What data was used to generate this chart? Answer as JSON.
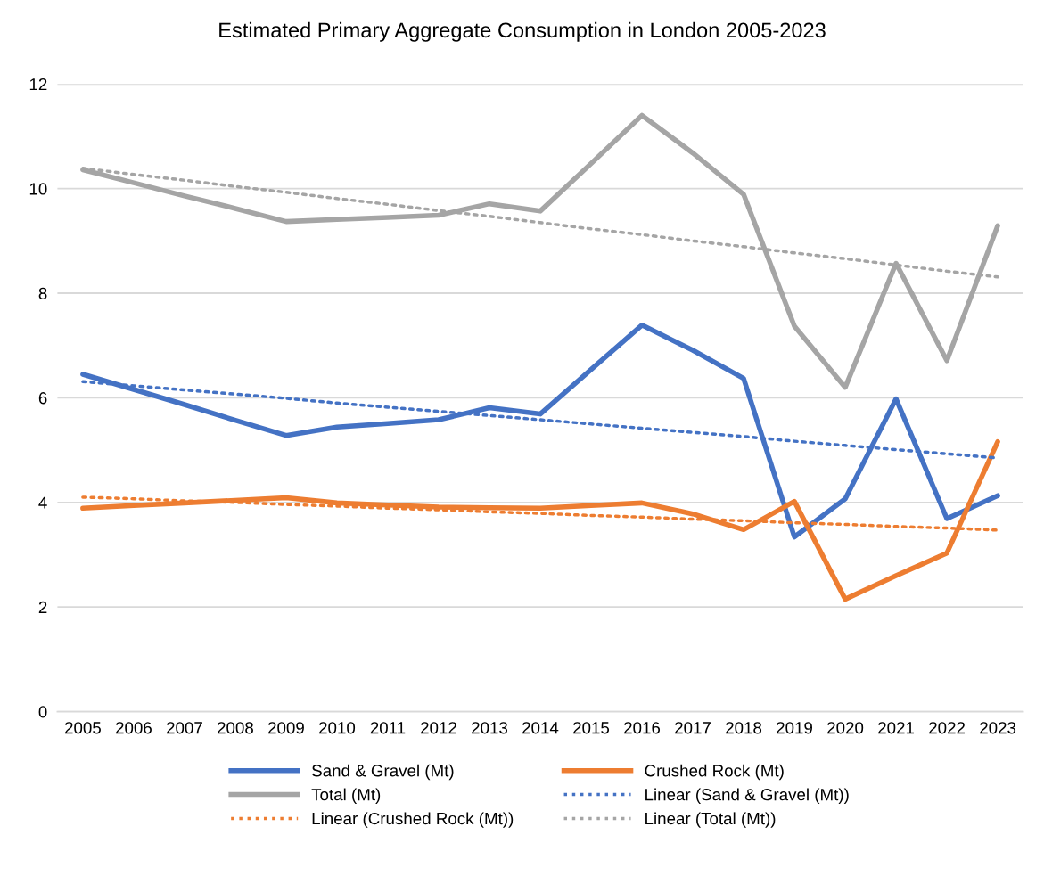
{
  "chart_data": {
    "type": "line",
    "title": "Estimated Primary Aggregate Consumption in London 2005-2023",
    "categories": [
      "2005",
      "2006",
      "2007",
      "2008",
      "2009",
      "2010",
      "2011",
      "2012",
      "2013",
      "2014",
      "2015",
      "2016",
      "2017",
      "2018",
      "2019",
      "2020",
      "2021",
      "2022",
      "2023"
    ],
    "series": [
      {
        "name": "Sand & Gravel (Mt)",
        "color": "#4472c4",
        "values": [
          6.45,
          6.16,
          5.87,
          5.57,
          5.28,
          5.44,
          5.51,
          5.58,
          5.81,
          5.69,
          6.54,
          7.39,
          6.91,
          6.37,
          3.34,
          4.07,
          5.98,
          3.69,
          4.13
        ]
      },
      {
        "name": "Crushed Rock (Mt)",
        "color": "#ed7d31",
        "values": [
          3.89,
          3.94,
          3.99,
          4.04,
          4.09,
          3.99,
          3.95,
          3.91,
          3.9,
          3.89,
          3.94,
          3.99,
          3.78,
          3.48,
          4.02,
          2.15,
          2.6,
          3.03,
          5.16
        ]
      },
      {
        "name": "Total (Mt)",
        "color": "#a5a5a5",
        "values": [
          10.36,
          10.11,
          9.86,
          9.62,
          9.37,
          9.41,
          9.45,
          9.49,
          9.71,
          9.57,
          10.48,
          11.4,
          10.68,
          9.89,
          7.37,
          6.2,
          8.57,
          6.71,
          9.29
        ]
      },
      {
        "name": "Linear (Sand & Gravel (Mt))",
        "color": "#4472c4",
        "line_style": "dotted",
        "values": [
          6.31,
          6.23,
          6.15,
          6.07,
          5.99,
          5.9,
          5.82,
          5.74,
          5.66,
          5.58,
          5.5,
          5.42,
          5.34,
          5.26,
          5.17,
          5.09,
          5.01,
          4.93,
          4.85
        ]
      },
      {
        "name": "Linear (Crushed Rock (Mt))",
        "color": "#ed7d31",
        "line_style": "dotted",
        "values": [
          4.1,
          4.07,
          4.03,
          4.0,
          3.96,
          3.93,
          3.89,
          3.86,
          3.82,
          3.79,
          3.75,
          3.72,
          3.68,
          3.65,
          3.61,
          3.58,
          3.54,
          3.51,
          3.47
        ]
      },
      {
        "name": "Linear (Total (Mt))",
        "color": "#a5a5a5",
        "line_style": "dotted",
        "values": [
          10.39,
          10.27,
          10.16,
          10.04,
          9.93,
          9.81,
          9.7,
          9.58,
          9.47,
          9.35,
          9.23,
          9.12,
          9.0,
          8.89,
          8.77,
          8.66,
          8.54,
          8.42,
          8.31
        ]
      }
    ],
    "ylim": [
      0,
      12
    ],
    "yticks": [
      0,
      2,
      4,
      6,
      8,
      10,
      12
    ],
    "grid": "y",
    "legend": "bottom",
    "marker": "none",
    "line_style": "solid"
  }
}
